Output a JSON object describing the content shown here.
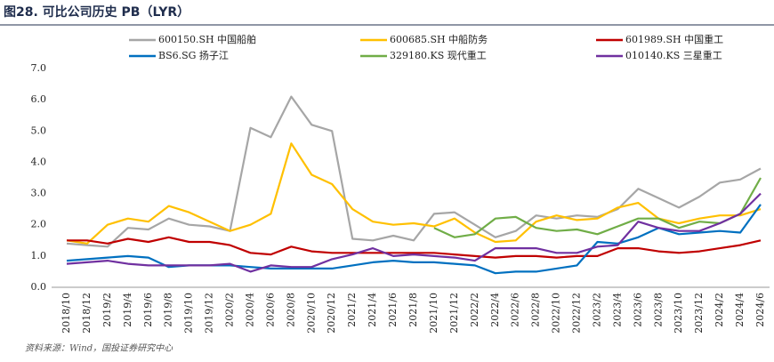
{
  "chart_data": {
    "type": "line",
    "title": "图28. 可比公司历史 PB（LYR）",
    "source": "资料来源：Wind，国投证券研究中心",
    "categories": [
      "2018/10",
      "2018/12",
      "2019/2",
      "2019/4",
      "2019/6",
      "2019/8",
      "2019/10",
      "2019/12",
      "2020/2",
      "2020/4",
      "2020/6",
      "2020/8",
      "2020/10",
      "2020/12",
      "2021/2",
      "2021/4",
      "2021/6",
      "2021/8",
      "2021/10",
      "2021/12",
      "2022/2",
      "2022/4",
      "2022/6",
      "2022/8",
      "2022/10",
      "2022/12",
      "2023/2",
      "2023/4",
      "2023/6",
      "2023/8",
      "2023/10",
      "2023/12",
      "2024/2",
      "2024/4",
      "2024/6"
    ],
    "series": [
      {
        "name": "600150.SH 中国船舶",
        "color": "#a6a6a6",
        "values": [
          1.4,
          1.35,
          1.3,
          1.9,
          1.85,
          2.2,
          2.0,
          1.95,
          1.8,
          5.1,
          4.8,
          6.1,
          5.2,
          5.0,
          1.55,
          1.5,
          1.65,
          1.5,
          2.35,
          2.4,
          2.0,
          1.6,
          1.8,
          2.3,
          2.2,
          2.3,
          2.25,
          2.5,
          3.15,
          2.85,
          2.55,
          2.9,
          3.35,
          3.45,
          3.8
        ]
      },
      {
        "name": "600685.SH 中船防务",
        "color": "#ffc000",
        "values": [
          1.5,
          1.4,
          2.0,
          2.2,
          2.1,
          2.6,
          2.4,
          2.1,
          1.8,
          2.0,
          2.35,
          4.6,
          3.6,
          3.3,
          2.5,
          2.1,
          2.0,
          2.05,
          1.95,
          2.2,
          1.75,
          1.45,
          1.5,
          2.1,
          2.3,
          2.15,
          2.2,
          2.55,
          2.7,
          2.2,
          2.05,
          2.2,
          2.3,
          2.3,
          2.5
        ]
      },
      {
        "name": "601989.SH 中国重工",
        "color": "#c00000",
        "values": [
          1.5,
          1.5,
          1.4,
          1.55,
          1.45,
          1.6,
          1.45,
          1.45,
          1.35,
          1.1,
          1.05,
          1.3,
          1.15,
          1.1,
          1.1,
          1.1,
          1.1,
          1.1,
          1.1,
          1.05,
          1.0,
          0.95,
          1.0,
          1.0,
          0.95,
          1.0,
          1.0,
          1.25,
          1.25,
          1.15,
          1.1,
          1.15,
          1.25,
          1.35,
          1.5
        ]
      },
      {
        "name": "BS6.SG 扬子江",
        "color": "#0070c0",
        "values": [
          0.85,
          0.9,
          0.95,
          1.0,
          0.95,
          0.65,
          0.7,
          0.7,
          0.7,
          0.65,
          0.6,
          0.6,
          0.6,
          0.6,
          0.7,
          0.8,
          0.85,
          0.8,
          0.8,
          0.75,
          0.7,
          0.45,
          0.5,
          0.5,
          0.6,
          0.7,
          1.45,
          1.4,
          1.6,
          1.9,
          1.7,
          1.75,
          1.8,
          1.75,
          2.65
        ]
      },
      {
        "name": "329180.KS 现代重工",
        "color": "#70ad47",
        "values": [
          null,
          null,
          null,
          null,
          null,
          null,
          null,
          null,
          null,
          null,
          null,
          null,
          null,
          null,
          null,
          null,
          null,
          null,
          1.9,
          1.6,
          1.7,
          2.2,
          2.25,
          1.9,
          1.8,
          1.85,
          1.7,
          1.95,
          2.2,
          2.2,
          1.9,
          2.1,
          2.05,
          2.35,
          3.5
        ]
      },
      {
        "name": "010140.KS 三星重工",
        "color": "#7030a0",
        "values": [
          0.75,
          0.8,
          0.85,
          0.75,
          0.7,
          0.7,
          0.7,
          0.7,
          0.75,
          0.5,
          0.7,
          0.65,
          0.65,
          0.9,
          1.05,
          1.25,
          1.0,
          1.05,
          1.0,
          0.95,
          0.85,
          1.25,
          1.25,
          1.25,
          1.1,
          1.1,
          1.3,
          1.35,
          2.1,
          1.9,
          1.8,
          1.8,
          2.05,
          2.35,
          3.0
        ]
      }
    ],
    "ylim": [
      0,
      7
    ],
    "yticks": [
      {
        "value": 0,
        "label": "0.0"
      },
      {
        "value": 1,
        "label": "1.0"
      },
      {
        "value": 2,
        "label": "2.0"
      },
      {
        "value": 3,
        "label": "3.0"
      },
      {
        "value": 4,
        "label": "4.0"
      },
      {
        "value": 5,
        "label": "5.0"
      },
      {
        "value": 6,
        "label": "6.0"
      },
      {
        "value": 7,
        "label": "7.0"
      }
    ],
    "grid": false
  }
}
